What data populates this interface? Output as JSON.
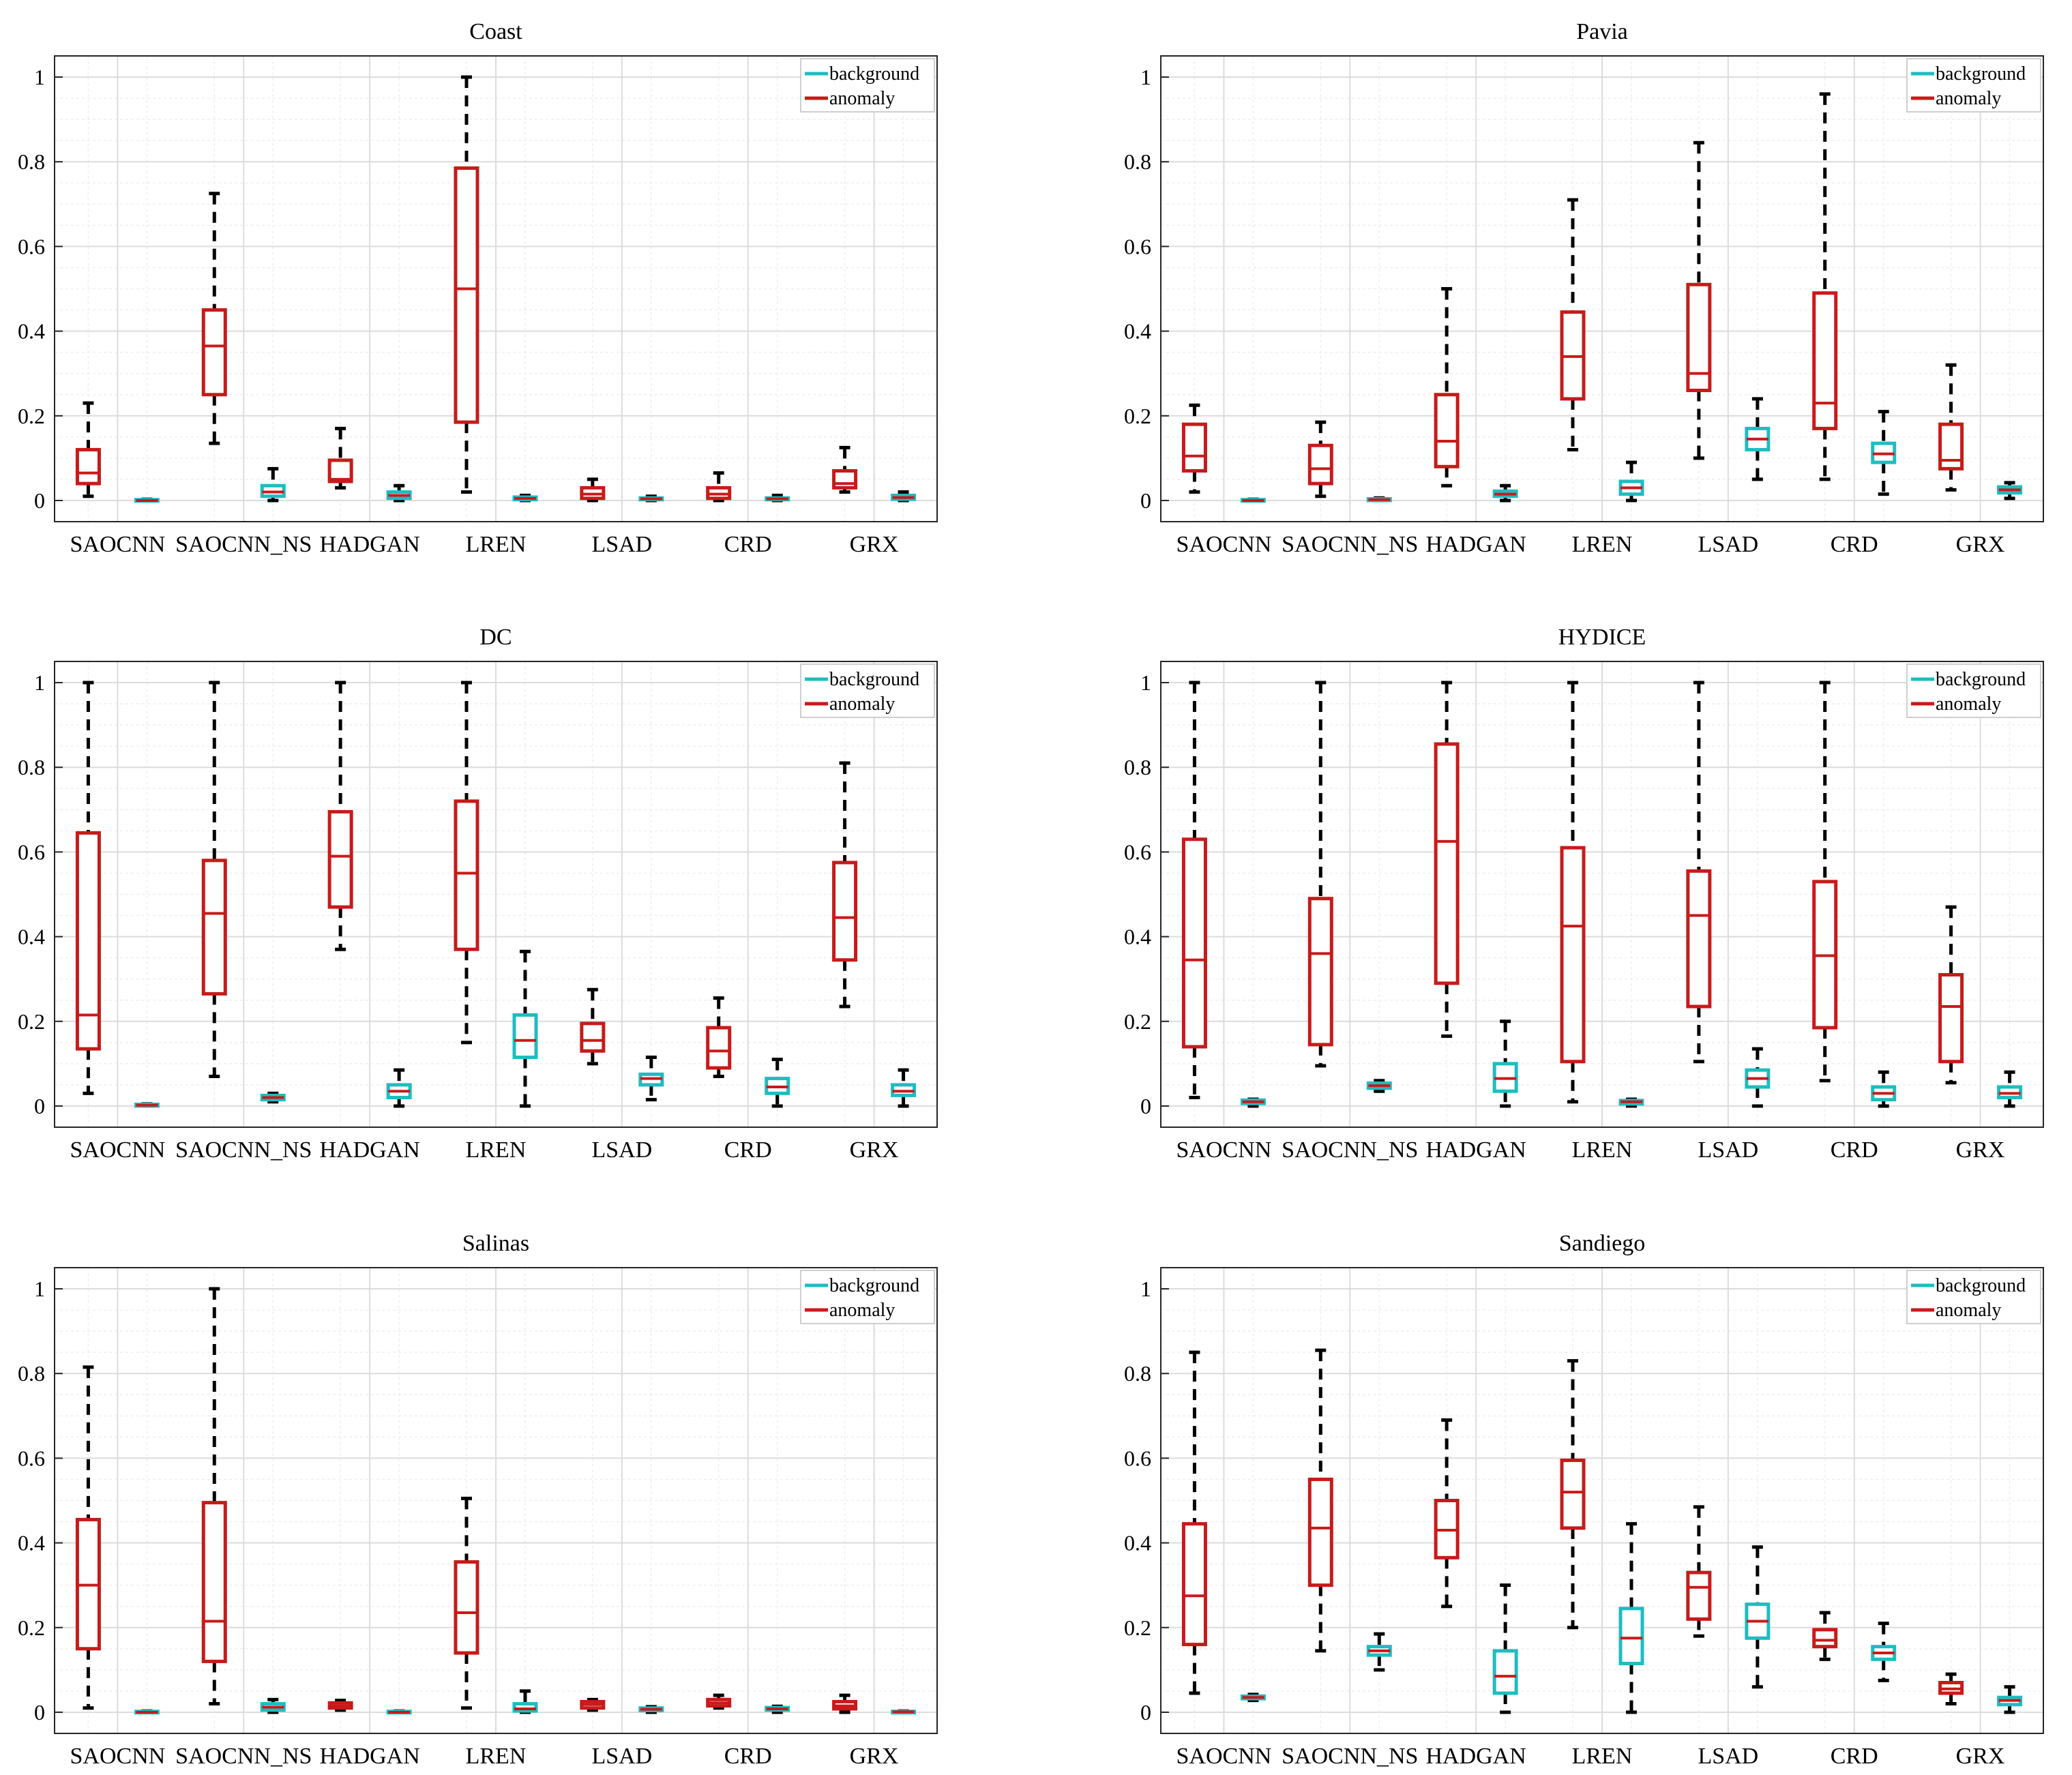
{
  "chart_data": [
    {
      "type": "box",
      "title": "Coast",
      "categories": [
        "SAOCNN",
        "SAOCNN_NS",
        "HADGAN",
        "LREN",
        "LSAD",
        "CRD",
        "GRX"
      ],
      "ylim": [
        -0.05,
        1.05
      ],
      "yticks": [
        0,
        0.2,
        0.4,
        0.6,
        0.8,
        1
      ],
      "ytick_labels": [
        "0",
        "0.2",
        "0.4",
        "0.6",
        "0.8",
        "1"
      ],
      "legend": {
        "position": "top-right",
        "entries": [
          "background",
          "anomaly"
        ]
      },
      "colors": {
        "background": "#1fbcc0",
        "anomaly": "#c81a1a",
        "whisker": "#000000"
      },
      "series": [
        {
          "name": "anomaly",
          "boxes": [
            {
              "min": 0.01,
              "q1": 0.04,
              "median": 0.065,
              "q3": 0.12,
              "max": 0.23
            },
            {
              "min": 0.135,
              "q1": 0.25,
              "median": 0.365,
              "q3": 0.45,
              "max": 0.725
            },
            {
              "min": 0.03,
              "q1": 0.045,
              "median": 0.05,
              "q3": 0.095,
              "max": 0.17
            },
            {
              "min": 0.02,
              "q1": 0.185,
              "median": 0.5,
              "q3": 0.785,
              "max": 1.0
            },
            {
              "min": 0.0,
              "q1": 0.005,
              "median": 0.015,
              "q3": 0.03,
              "max": 0.05
            },
            {
              "min": 0.0,
              "q1": 0.005,
              "median": 0.015,
              "q3": 0.03,
              "max": 0.065
            },
            {
              "min": 0.02,
              "q1": 0.03,
              "median": 0.04,
              "q3": 0.07,
              "max": 0.125
            }
          ]
        },
        {
          "name": "background",
          "boxes": [
            {
              "min": 0.0,
              "q1": 0.0,
              "median": 0.0,
              "q3": 0.002,
              "max": 0.003
            },
            {
              "min": 0.0,
              "q1": 0.01,
              "median": 0.02,
              "q3": 0.035,
              "max": 0.075
            },
            {
              "min": 0.0,
              "q1": 0.005,
              "median": 0.012,
              "q3": 0.02,
              "max": 0.035
            },
            {
              "min": 0.0,
              "q1": 0.002,
              "median": 0.005,
              "q3": 0.008,
              "max": 0.012
            },
            {
              "min": 0.0,
              "q1": 0.002,
              "median": 0.004,
              "q3": 0.006,
              "max": 0.01
            },
            {
              "min": 0.0,
              "q1": 0.002,
              "median": 0.004,
              "q3": 0.006,
              "max": 0.012
            },
            {
              "min": 0.0,
              "q1": 0.003,
              "median": 0.007,
              "q3": 0.012,
              "max": 0.02
            }
          ]
        }
      ]
    },
    {
      "type": "box",
      "title": "Pavia",
      "categories": [
        "SAOCNN",
        "SAOCNN_NS",
        "HADGAN",
        "LREN",
        "LSAD",
        "CRD",
        "GRX"
      ],
      "ylim": [
        -0.05,
        1.05
      ],
      "yticks": [
        0,
        0.2,
        0.4,
        0.6,
        0.8,
        1
      ],
      "ytick_labels": [
        "0",
        "0.2",
        "0.4",
        "0.6",
        "0.8",
        "1"
      ],
      "legend": {
        "position": "top-right",
        "entries": [
          "background",
          "anomaly"
        ]
      },
      "colors": {
        "background": "#1fbcc0",
        "anomaly": "#c81a1a",
        "whisker": "#000000"
      },
      "series": [
        {
          "name": "anomaly",
          "boxes": [
            {
              "min": 0.02,
              "q1": 0.07,
              "median": 0.105,
              "q3": 0.18,
              "max": 0.225
            },
            {
              "min": 0.01,
              "q1": 0.04,
              "median": 0.075,
              "q3": 0.13,
              "max": 0.185
            },
            {
              "min": 0.035,
              "q1": 0.08,
              "median": 0.14,
              "q3": 0.25,
              "max": 0.5
            },
            {
              "min": 0.12,
              "q1": 0.24,
              "median": 0.34,
              "q3": 0.445,
              "max": 0.71
            },
            {
              "min": 0.1,
              "q1": 0.26,
              "median": 0.3,
              "q3": 0.51,
              "max": 0.845
            },
            {
              "min": 0.05,
              "q1": 0.17,
              "median": 0.23,
              "q3": 0.49,
              "max": 0.96
            },
            {
              "min": 0.025,
              "q1": 0.075,
              "median": 0.095,
              "q3": 0.18,
              "max": 0.32
            }
          ]
        },
        {
          "name": "background",
          "boxes": [
            {
              "min": 0.0,
              "q1": 0.0,
              "median": 0.0,
              "q3": 0.002,
              "max": 0.003
            },
            {
              "min": 0.0,
              "q1": 0.0,
              "median": 0.002,
              "q3": 0.004,
              "max": 0.006
            },
            {
              "min": 0.0,
              "q1": 0.01,
              "median": 0.015,
              "q3": 0.022,
              "max": 0.035
            },
            {
              "min": 0.0,
              "q1": 0.015,
              "median": 0.03,
              "q3": 0.045,
              "max": 0.09
            },
            {
              "min": 0.05,
              "q1": 0.12,
              "median": 0.145,
              "q3": 0.17,
              "max": 0.24
            },
            {
              "min": 0.015,
              "q1": 0.09,
              "median": 0.11,
              "q3": 0.135,
              "max": 0.21
            },
            {
              "min": 0.005,
              "q1": 0.018,
              "median": 0.025,
              "q3": 0.032,
              "max": 0.042
            }
          ]
        }
      ]
    },
    {
      "type": "box",
      "title": "DC",
      "categories": [
        "SAOCNN",
        "SAOCNN_NS",
        "HADGAN",
        "LREN",
        "LSAD",
        "CRD",
        "GRX"
      ],
      "ylim": [
        -0.05,
        1.05
      ],
      "yticks": [
        0,
        0.2,
        0.4,
        0.6,
        0.8,
        1
      ],
      "ytick_labels": [
        "0",
        "0.2",
        "0.4",
        "0.6",
        "0.8",
        "1"
      ],
      "legend": {
        "position": "top-right",
        "entries": [
          "background",
          "anomaly"
        ]
      },
      "colors": {
        "background": "#1fbcc0",
        "anomaly": "#c81a1a",
        "whisker": "#000000"
      },
      "series": [
        {
          "name": "anomaly",
          "boxes": [
            {
              "min": 0.03,
              "q1": 0.135,
              "median": 0.215,
              "q3": 0.645,
              "max": 1.0
            },
            {
              "min": 0.07,
              "q1": 0.265,
              "median": 0.455,
              "q3": 0.58,
              "max": 1.0
            },
            {
              "min": 0.37,
              "q1": 0.47,
              "median": 0.59,
              "q3": 0.695,
              "max": 1.0
            },
            {
              "min": 0.15,
              "q1": 0.37,
              "median": 0.55,
              "q3": 0.72,
              "max": 1.0
            },
            {
              "min": 0.1,
              "q1": 0.13,
              "median": 0.155,
              "q3": 0.195,
              "max": 0.275
            },
            {
              "min": 0.07,
              "q1": 0.09,
              "median": 0.13,
              "q3": 0.185,
              "max": 0.255
            },
            {
              "min": 0.235,
              "q1": 0.345,
              "median": 0.445,
              "q3": 0.575,
              "max": 0.81
            }
          ]
        },
        {
          "name": "background",
          "boxes": [
            {
              "min": 0.0,
              "q1": 0.0,
              "median": 0.002,
              "q3": 0.004,
              "max": 0.005
            },
            {
              "min": 0.01,
              "q1": 0.015,
              "median": 0.02,
              "q3": 0.025,
              "max": 0.03
            },
            {
              "min": 0.0,
              "q1": 0.02,
              "median": 0.035,
              "q3": 0.05,
              "max": 0.085
            },
            {
              "min": 0.0,
              "q1": 0.115,
              "median": 0.155,
              "q3": 0.215,
              "max": 0.365
            },
            {
              "min": 0.015,
              "q1": 0.05,
              "median": 0.065,
              "q3": 0.075,
              "max": 0.115
            },
            {
              "min": 0.0,
              "q1": 0.03,
              "median": 0.045,
              "q3": 0.065,
              "max": 0.11
            },
            {
              "min": 0.0,
              "q1": 0.025,
              "median": 0.035,
              "q3": 0.05,
              "max": 0.085
            }
          ]
        }
      ]
    },
    {
      "type": "box",
      "title": "HYDICE",
      "categories": [
        "SAOCNN",
        "SAOCNN_NS",
        "HADGAN",
        "LREN",
        "LSAD",
        "CRD",
        "GRX"
      ],
      "ylim": [
        -0.05,
        1.05
      ],
      "yticks": [
        0,
        0.2,
        0.4,
        0.6,
        0.8,
        1
      ],
      "ytick_labels": [
        "0",
        "0.2",
        "0.4",
        "0.6",
        "0.8",
        "1"
      ],
      "legend": {
        "position": "top-right",
        "entries": [
          "background",
          "anomaly"
        ]
      },
      "colors": {
        "background": "#1fbcc0",
        "anomaly": "#c81a1a",
        "whisker": "#000000"
      },
      "series": [
        {
          "name": "anomaly",
          "boxes": [
            {
              "min": 0.02,
              "q1": 0.14,
              "median": 0.345,
              "q3": 0.63,
              "max": 1.0
            },
            {
              "min": 0.095,
              "q1": 0.145,
              "median": 0.36,
              "q3": 0.49,
              "max": 1.0
            },
            {
              "min": 0.165,
              "q1": 0.29,
              "median": 0.625,
              "q3": 0.855,
              "max": 1.0
            },
            {
              "min": 0.01,
              "q1": 0.105,
              "median": 0.425,
              "q3": 0.61,
              "max": 1.0
            },
            {
              "min": 0.105,
              "q1": 0.235,
              "median": 0.45,
              "q3": 0.555,
              "max": 1.0
            },
            {
              "min": 0.06,
              "q1": 0.185,
              "median": 0.355,
              "q3": 0.53,
              "max": 1.0
            },
            {
              "min": 0.055,
              "q1": 0.105,
              "median": 0.235,
              "q3": 0.31,
              "max": 0.47
            }
          ]
        },
        {
          "name": "background",
          "boxes": [
            {
              "min": 0.0,
              "q1": 0.006,
              "median": 0.01,
              "q3": 0.014,
              "max": 0.016
            },
            {
              "min": 0.035,
              "q1": 0.042,
              "median": 0.048,
              "q3": 0.054,
              "max": 0.06
            },
            {
              "min": 0.0,
              "q1": 0.035,
              "median": 0.065,
              "q3": 0.1,
              "max": 0.2
            },
            {
              "min": 0.0,
              "q1": 0.005,
              "median": 0.01,
              "q3": 0.013,
              "max": 0.016
            },
            {
              "min": 0.0,
              "q1": 0.045,
              "median": 0.065,
              "q3": 0.085,
              "max": 0.135
            },
            {
              "min": 0.0,
              "q1": 0.015,
              "median": 0.03,
              "q3": 0.045,
              "max": 0.08
            },
            {
              "min": 0.0,
              "q1": 0.02,
              "median": 0.03,
              "q3": 0.045,
              "max": 0.08
            }
          ]
        }
      ]
    },
    {
      "type": "box",
      "title": "Salinas",
      "categories": [
        "SAOCNN",
        "SAOCNN_NS",
        "HADGAN",
        "LREN",
        "LSAD",
        "CRD",
        "GRX"
      ],
      "ylim": [
        -0.05,
        1.05
      ],
      "yticks": [
        0,
        0.2,
        0.4,
        0.6,
        0.8,
        1
      ],
      "ytick_labels": [
        "0",
        "0.2",
        "0.4",
        "0.6",
        "0.8",
        "1"
      ],
      "legend": {
        "position": "top-right",
        "entries": [
          "background",
          "anomaly"
        ]
      },
      "colors": {
        "background": "#1fbcc0",
        "anomaly": "#c81a1a",
        "whisker": "#000000"
      },
      "series": [
        {
          "name": "anomaly",
          "boxes": [
            {
              "min": 0.01,
              "q1": 0.15,
              "median": 0.3,
              "q3": 0.455,
              "max": 0.815
            },
            {
              "min": 0.02,
              "q1": 0.12,
              "median": 0.215,
              "q3": 0.495,
              "max": 1.0
            },
            {
              "min": 0.005,
              "q1": 0.01,
              "median": 0.015,
              "q3": 0.022,
              "max": 0.028
            },
            {
              "min": 0.01,
              "q1": 0.14,
              "median": 0.235,
              "q3": 0.355,
              "max": 0.505
            },
            {
              "min": 0.005,
              "q1": 0.01,
              "median": 0.018,
              "q3": 0.025,
              "max": 0.03
            },
            {
              "min": 0.01,
              "q1": 0.015,
              "median": 0.022,
              "q3": 0.03,
              "max": 0.04
            },
            {
              "min": 0.0,
              "q1": 0.008,
              "median": 0.015,
              "q3": 0.025,
              "max": 0.04
            }
          ]
        },
        {
          "name": "background",
          "boxes": [
            {
              "min": 0.0,
              "q1": 0.0,
              "median": 0.0,
              "q3": 0.002,
              "max": 0.003
            },
            {
              "min": 0.0,
              "q1": 0.005,
              "median": 0.012,
              "q3": 0.02,
              "max": 0.03
            },
            {
              "min": 0.0,
              "q1": 0.0,
              "median": 0.0,
              "q3": 0.002,
              "max": 0.003
            },
            {
              "min": 0.0,
              "q1": 0.003,
              "median": 0.008,
              "q3": 0.02,
              "max": 0.05
            },
            {
              "min": 0.0,
              "q1": 0.004,
              "median": 0.007,
              "q3": 0.01,
              "max": 0.013
            },
            {
              "min": 0.0,
              "q1": 0.005,
              "median": 0.008,
              "q3": 0.011,
              "max": 0.014
            },
            {
              "min": 0.0,
              "q1": 0.0,
              "median": 0.001,
              "q3": 0.002,
              "max": 0.003
            }
          ]
        }
      ]
    },
    {
      "type": "box",
      "title": "Sandiego",
      "categories": [
        "SAOCNN",
        "SAOCNN_NS",
        "HADGAN",
        "LREN",
        "LSAD",
        "CRD",
        "GRX"
      ],
      "ylim": [
        -0.05,
        1.05
      ],
      "yticks": [
        0,
        0.2,
        0.4,
        0.6,
        0.8,
        1
      ],
      "ytick_labels": [
        "0",
        "0.2",
        "0.4",
        "0.6",
        "0.8",
        "1"
      ],
      "legend": {
        "position": "top-right",
        "entries": [
          "background",
          "anomaly"
        ]
      },
      "colors": {
        "background": "#1fbcc0",
        "anomaly": "#c81a1a",
        "whisker": "#000000"
      },
      "series": [
        {
          "name": "anomaly",
          "boxes": [
            {
              "min": 0.045,
              "q1": 0.16,
              "median": 0.275,
              "q3": 0.445,
              "max": 0.85
            },
            {
              "min": 0.145,
              "q1": 0.3,
              "median": 0.435,
              "q3": 0.55,
              "max": 0.855
            },
            {
              "min": 0.25,
              "q1": 0.365,
              "median": 0.43,
              "q3": 0.5,
              "max": 0.69
            },
            {
              "min": 0.2,
              "q1": 0.435,
              "median": 0.52,
              "q3": 0.595,
              "max": 0.83
            },
            {
              "min": 0.18,
              "q1": 0.22,
              "median": 0.295,
              "q3": 0.33,
              "max": 0.485
            },
            {
              "min": 0.125,
              "q1": 0.155,
              "median": 0.17,
              "q3": 0.195,
              "max": 0.235
            },
            {
              "min": 0.02,
              "q1": 0.045,
              "median": 0.055,
              "q3": 0.07,
              "max": 0.09
            }
          ]
        },
        {
          "name": "background",
          "boxes": [
            {
              "min": 0.028,
              "q1": 0.032,
              "median": 0.035,
              "q3": 0.038,
              "max": 0.042
            },
            {
              "min": 0.1,
              "q1": 0.135,
              "median": 0.145,
              "q3": 0.155,
              "max": 0.185
            },
            {
              "min": 0.0,
              "q1": 0.045,
              "median": 0.085,
              "q3": 0.145,
              "max": 0.3
            },
            {
              "min": 0.0,
              "q1": 0.115,
              "median": 0.175,
              "q3": 0.245,
              "max": 0.445
            },
            {
              "min": 0.06,
              "q1": 0.175,
              "median": 0.215,
              "q3": 0.255,
              "max": 0.39
            },
            {
              "min": 0.075,
              "q1": 0.125,
              "median": 0.14,
              "q3": 0.155,
              "max": 0.21
            },
            {
              "min": 0.0,
              "q1": 0.018,
              "median": 0.028,
              "q3": 0.035,
              "max": 0.06
            }
          ]
        }
      ]
    }
  ]
}
